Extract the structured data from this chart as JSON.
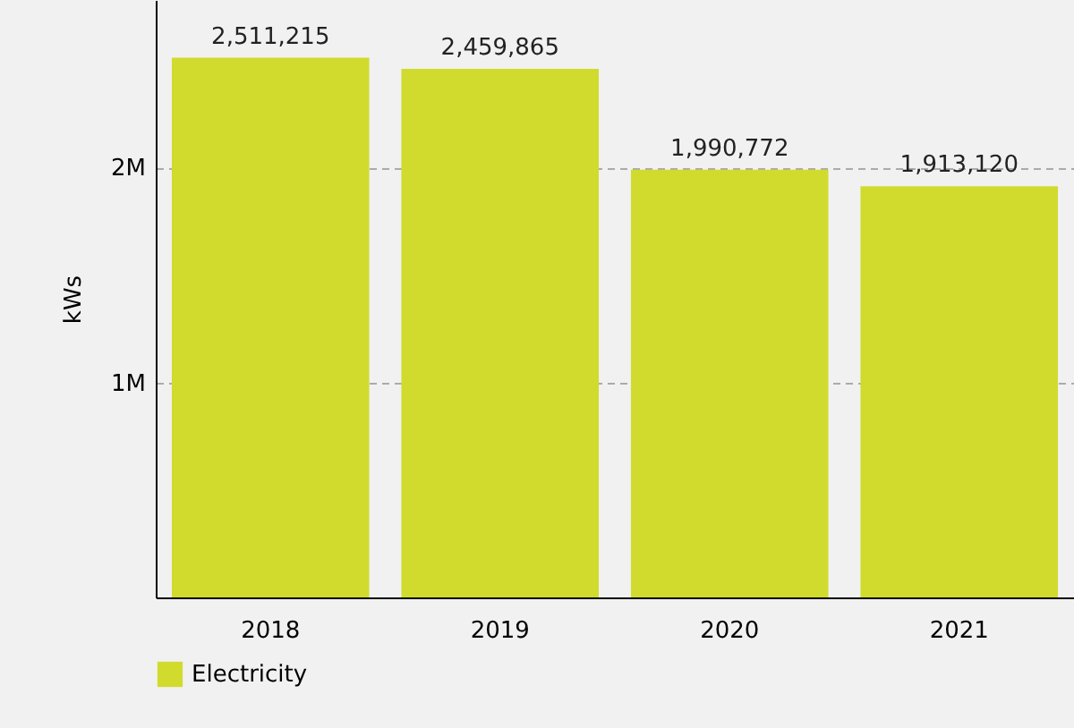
{
  "chart_data": {
    "type": "bar",
    "ylabel": "kWs",
    "categories": [
      "2018",
      "2019",
      "2020",
      "2021"
    ],
    "series": [
      {
        "name": "Electricity",
        "color": "#d0db2e",
        "values": [
          2511215,
          2459865,
          1990772,
          1913120
        ],
        "value_labels": [
          "2,511,215",
          "2,459,865",
          "1,990,772",
          "1,913,120"
        ]
      }
    ],
    "ylim": [
      0,
      2780000
    ],
    "yticks": [
      {
        "value": 1000000,
        "label": "1M"
      },
      {
        "value": 2000000,
        "label": "2M"
      }
    ],
    "grid": "y",
    "legend": "bottom"
  }
}
